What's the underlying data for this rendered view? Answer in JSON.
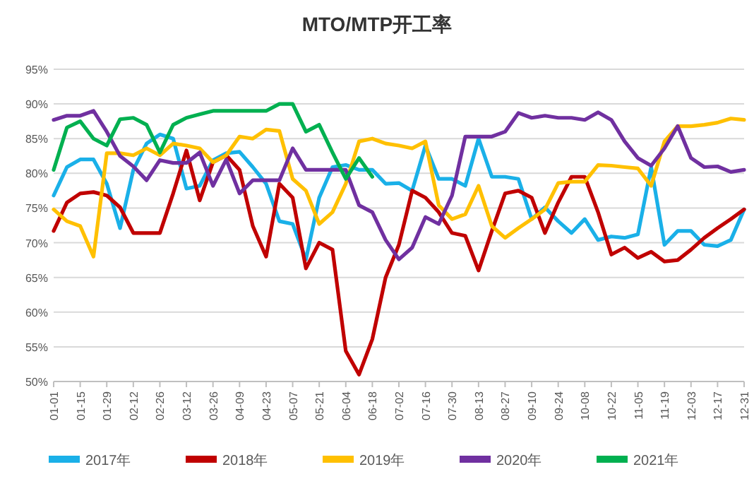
{
  "chart_data": {
    "type": "line",
    "title": "MTO/MTP开工率",
    "categories": [
      "01-01",
      null,
      "01-15",
      null,
      "01-29",
      null,
      "02-12",
      null,
      "02-26",
      null,
      "03-12",
      null,
      "03-26",
      null,
      "04-09",
      null,
      "04-23",
      null,
      "05-07",
      null,
      "05-21",
      null,
      "06-04",
      null,
      "06-18",
      null,
      "07-02",
      null,
      "07-16",
      null,
      "07-30",
      null,
      "08-13",
      null,
      "08-27",
      null,
      "09-10",
      null,
      "09-24",
      null,
      "10-08",
      null,
      "10-22",
      null,
      "11-05",
      null,
      "11-19",
      null,
      "12-03",
      null,
      "12-17",
      null,
      "12-31"
    ],
    "series": [
      {
        "name": "2017年",
        "color": "#1ab0e8",
        "values": [
          76.8,
          80.9,
          82,
          82,
          78.5,
          72.1,
          80.5,
          84.3,
          85.6,
          85,
          77.8,
          78.2,
          81.9,
          82.9,
          83.1,
          80.9,
          78.5,
          73.1,
          72.7,
          67.6,
          76.5,
          80.9,
          81.2,
          80.5,
          80.5,
          78.5,
          78.6,
          77.5,
          84,
          79.2,
          79.2,
          78.2,
          85,
          79.5,
          79.5,
          79.2,
          73.4,
          75.1,
          73.1,
          71.4,
          73.4,
          70.4,
          70.9,
          70.7,
          71.2,
          80.9,
          69.7,
          71.7,
          71.7,
          69.7,
          69.5,
          70.4,
          74.8
        ]
      },
      {
        "name": "2018年",
        "color": "#c00000",
        "values": [
          71.7,
          75.8,
          77.1,
          77.3,
          76.8,
          75.1,
          71.4,
          71.4,
          71.4,
          77.1,
          83.3,
          76.1,
          81.6,
          82.6,
          80.5,
          72.4,
          68,
          78.5,
          76.5,
          66.3,
          70,
          69,
          54.4,
          51,
          56.1,
          65,
          69.7,
          77.5,
          76.5,
          74.4,
          71.4,
          71,
          66,
          71.7,
          77.1,
          77.5,
          76.5,
          71.4,
          75.8,
          79.5,
          79.5,
          74.4,
          68.3,
          69.3,
          67.8,
          68.7,
          67.3,
          67.5,
          69,
          70.7,
          72.1,
          73.4,
          74.8
        ]
      },
      {
        "name": "2019年",
        "color": "#ffc000",
        "values": [
          74.8,
          73.1,
          72.4,
          68,
          82.9,
          82.9,
          82.6,
          83.6,
          82.6,
          84.3,
          84,
          83.6,
          81.6,
          82.6,
          85.3,
          85,
          86.3,
          86.1,
          79.2,
          77.5,
          72.7,
          74.4,
          78.5,
          84.6,
          85,
          84.3,
          84,
          83.6,
          84.6,
          75.4,
          73.4,
          74.1,
          78.2,
          72.4,
          70.7,
          72.1,
          73.4,
          74.8,
          78.6,
          78.8,
          78.8,
          81.2,
          81.1,
          80.9,
          80.7,
          78.2,
          84.6,
          86.8,
          86.8,
          87,
          87.3,
          87.9,
          87.7
        ]
      },
      {
        "name": "2020年",
        "color": "#7030a0",
        "values": [
          87.7,
          88.3,
          88.3,
          89,
          86,
          82.5,
          81,
          79,
          81.9,
          81.5,
          81.5,
          83,
          78.2,
          82,
          77.1,
          79,
          79,
          79,
          83.6,
          80.5,
          80.5,
          80.5,
          80.5,
          75.4,
          74.4,
          70.4,
          67.6,
          69.3,
          73.7,
          72.7,
          76.8,
          85.3,
          85.3,
          85.3,
          86,
          88.7,
          88,
          88.3,
          88,
          88,
          87.7,
          88.8,
          87.7,
          84.6,
          82.2,
          81.1,
          83.6,
          86.8,
          82.2,
          80.9,
          81,
          80.2,
          80.5
        ]
      },
      {
        "name": "2021年",
        "color": "#00b050",
        "values": [
          80.5,
          86.6,
          87.5,
          85,
          84,
          87.8,
          88,
          87,
          83,
          87,
          88,
          88.5,
          89,
          89,
          89,
          89,
          89,
          90,
          90,
          86,
          87,
          83,
          79.2,
          82.2,
          79.5,
          null,
          null,
          null,
          null,
          null,
          null,
          null,
          null,
          null,
          null,
          null,
          null,
          null,
          null,
          null,
          null,
          null,
          null,
          null,
          null,
          null,
          null,
          null,
          null,
          null,
          null,
          null,
          null
        ]
      }
    ],
    "ylim": [
      50,
      95
    ],
    "yticks": [
      {
        "value": 50,
        "label": "50%"
      },
      {
        "value": 55,
        "label": "55%"
      },
      {
        "value": 60,
        "label": "60%"
      },
      {
        "value": 65,
        "label": "65%"
      },
      {
        "value": 70,
        "label": "70%"
      },
      {
        "value": 75,
        "label": "75%"
      },
      {
        "value": 80,
        "label": "80%"
      },
      {
        "value": 85,
        "label": "85%"
      },
      {
        "value": 90,
        "label": "90%"
      },
      {
        "value": 95,
        "label": "95%"
      }
    ],
    "grid": "y",
    "legend": "bottom"
  }
}
